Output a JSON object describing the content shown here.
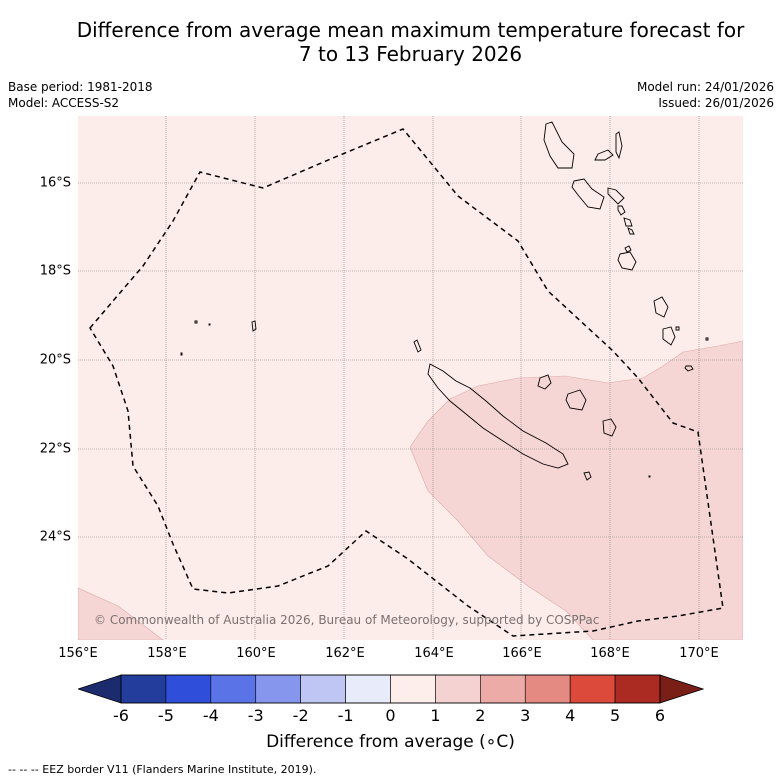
{
  "title_line1": "Difference from average mean maximum temperature forecast for",
  "title_line2": "7 to 13 February 2026",
  "base_period": "Base period: 1981-2018",
  "model": "Model: ACCESS-S2",
  "model_run": "Model run: 24/01/2026",
  "issued": "Issued: 26/01/2026",
  "copyright": "© Commonwealth of Australia 2026, Bureau of Meteorology, supported by COSPPac",
  "x_ticks": [
    "156°E",
    "158°E",
    "160°E",
    "162°E",
    "164°E",
    "166°E",
    "168°E",
    "170°E"
  ],
  "y_ticks": [
    "16°S",
    "18°S",
    "20°S",
    "22°S",
    "24°S"
  ],
  "colorbar": {
    "label": "Difference from average (∘C)",
    "ticks": [
      "-6",
      "-5",
      "-4",
      "-3",
      "-2",
      "-1",
      "0",
      "1",
      "2",
      "3",
      "4",
      "5",
      "6"
    ],
    "colors": [
      "#223d9c",
      "#2f4ed9",
      "#5a73e6",
      "#8596ec",
      "#c0c6f3",
      "#e8ebfa",
      "#fdedeb",
      "#f5d2d2",
      "#edaba8",
      "#e58a82",
      "#dc4a3c",
      "#ab2a22"
    ],
    "under_color": "#1c2a6e",
    "over_color": "#7a1e18"
  },
  "legend_text": "--  --  -- EEZ border V11 (Flanders Marine Institute, 2019).",
  "chart_data": {
    "type": "map",
    "title": "Difference from average mean maximum temperature forecast for 7 to 13 February 2026",
    "lon_range": [
      156,
      171
    ],
    "lat_range": [
      -26.5,
      -14.8
    ],
    "categories_shown": [
      "0 to 1",
      "1 to 2"
    ],
    "units": "°C"
  }
}
